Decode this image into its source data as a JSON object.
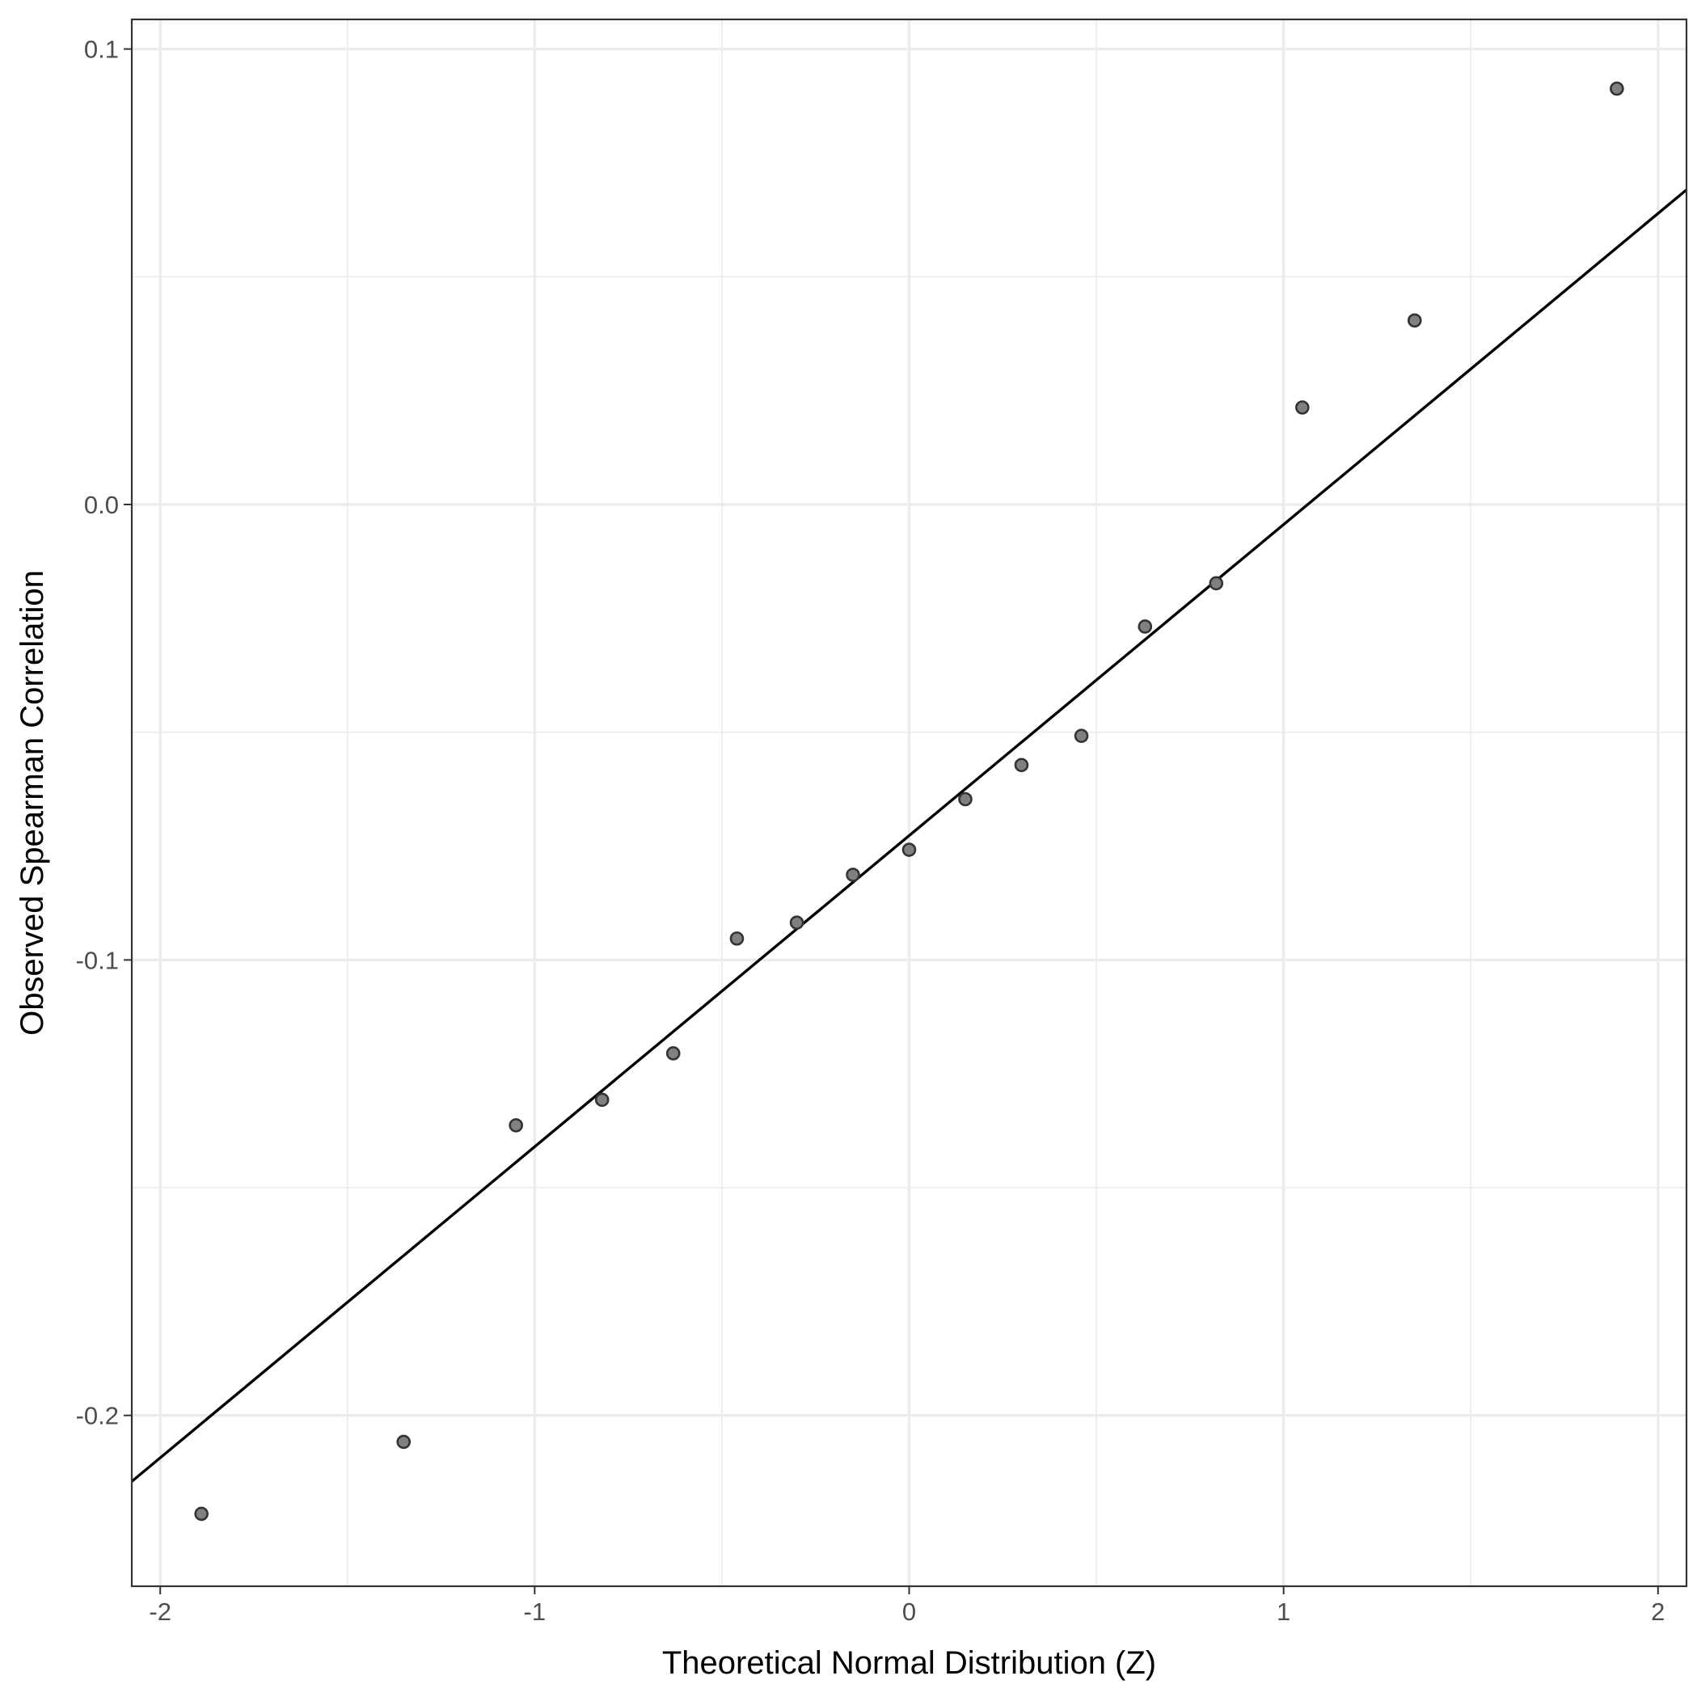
{
  "chart_data": {
    "type": "scatter",
    "title": "",
    "xlabel": "Theoretical Normal Distribution (Z)",
    "ylabel": "Observed Spearman Correlation",
    "xlim": [
      -2.076,
      2.076
    ],
    "ylim": [
      -0.2375,
      0.1065
    ],
    "x_ticks": [
      -2,
      -1,
      0,
      1,
      2
    ],
    "x_tick_labels": [
      "-2",
      "-1",
      "0",
      "1",
      "2"
    ],
    "y_ticks": [
      -0.2,
      -0.1,
      0.0,
      0.1
    ],
    "y_tick_labels": [
      "-0.2",
      "-0.1",
      "0.0",
      "0.1"
    ],
    "x_minor_ticks": [
      -1.5,
      -0.5,
      0.5,
      1.5
    ],
    "y_minor_ticks": [
      -0.15,
      -0.05,
      0.05
    ],
    "grid": true,
    "theme": "bw",
    "points": [
      {
        "x": -1.89,
        "y": -0.2216
      },
      {
        "x": -1.35,
        "y": -0.2058
      },
      {
        "x": -1.05,
        "y": -0.1363
      },
      {
        "x": -0.82,
        "y": -0.1307
      },
      {
        "x": -0.63,
        "y": -0.1205
      },
      {
        "x": -0.46,
        "y": -0.0953
      },
      {
        "x": -0.3,
        "y": -0.0918
      },
      {
        "x": -0.15,
        "y": -0.0813
      },
      {
        "x": 0.0,
        "y": -0.0758
      },
      {
        "x": 0.15,
        "y": -0.0647
      },
      {
        "x": 0.3,
        "y": -0.0572
      },
      {
        "x": 0.46,
        "y": -0.0508
      },
      {
        "x": 0.63,
        "y": -0.0268
      },
      {
        "x": 0.82,
        "y": -0.0173
      },
      {
        "x": 1.05,
        "y": 0.0213
      },
      {
        "x": 1.35,
        "y": 0.0404
      },
      {
        "x": 1.89,
        "y": 0.0913
      }
    ],
    "reference_line": {
      "intercept": -0.0727,
      "slope": 0.0683
    },
    "colors": {
      "point_fill": "#808080",
      "point_stroke": "#333333",
      "line": "#000000",
      "grid": "#ebebeb",
      "border": "#333333"
    }
  }
}
